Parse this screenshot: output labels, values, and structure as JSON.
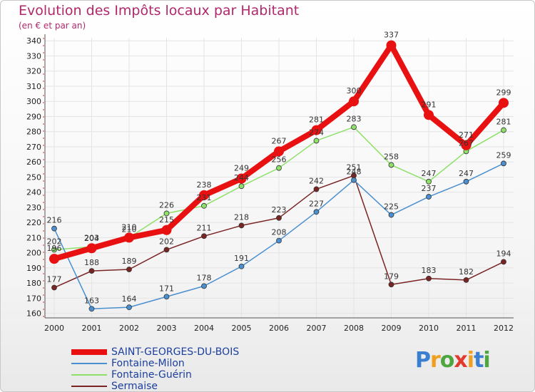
{
  "title": "Evolution des Impôts locaux par Habitant",
  "subtitle": "(en € et par an)",
  "logo": {
    "text": "Proxiti",
    "letters": [
      "P",
      "r",
      "o",
      "x",
      "i",
      "t",
      "i"
    ],
    "colors": [
      "#3b7fd0",
      "#f0a020",
      "#4da640",
      "#e23b2e",
      "#f0a020",
      "#3b7fd0",
      "#4da640"
    ]
  },
  "chart_data": {
    "type": "line",
    "x": [
      2000,
      2001,
      2002,
      2003,
      2004,
      2005,
      2006,
      2007,
      2008,
      2009,
      2010,
      2011,
      2012
    ],
    "ylim": [
      157,
      342
    ],
    "yticks": [
      160,
      170,
      180,
      190,
      200,
      210,
      220,
      230,
      240,
      250,
      260,
      270,
      280,
      290,
      300,
      310,
      320,
      330,
      340
    ],
    "series": [
      {
        "name": "Sermaise",
        "color": "#7a2424",
        "width": 1.5,
        "marker": 3.5,
        "values": [
          177,
          188,
          189,
          202,
          211,
          218,
          223,
          242,
          251,
          179,
          183,
          182,
          194
        ]
      },
      {
        "name": "Fontaine-Guérin",
        "color": "#8ee06a",
        "width": 1.5,
        "marker": 3.5,
        "values": [
          202,
          204,
          210,
          226,
          231,
          244,
          256,
          274,
          283,
          258,
          247,
          267,
          281
        ]
      },
      {
        "name": "Fontaine-Milon",
        "color": "#4a8fd0",
        "width": 1.5,
        "marker": 3.5,
        "values": [
          216,
          163,
          164,
          171,
          178,
          191,
          208,
          227,
          248,
          225,
          237,
          247,
          259
        ]
      },
      {
        "name": "SAINT-GEORGES-DU-BOIS",
        "color": "#e81010",
        "width": 8,
        "marker": 7,
        "values": [
          196,
          203,
          210,
          215,
          238,
          249,
          267,
          281,
          300,
          337,
          291,
          271,
          299
        ]
      }
    ],
    "legend": [
      "SAINT-GEORGES-DU-BOIS",
      "Fontaine-Milon",
      "Fontaine-Guérin",
      "Sermaise"
    ]
  }
}
